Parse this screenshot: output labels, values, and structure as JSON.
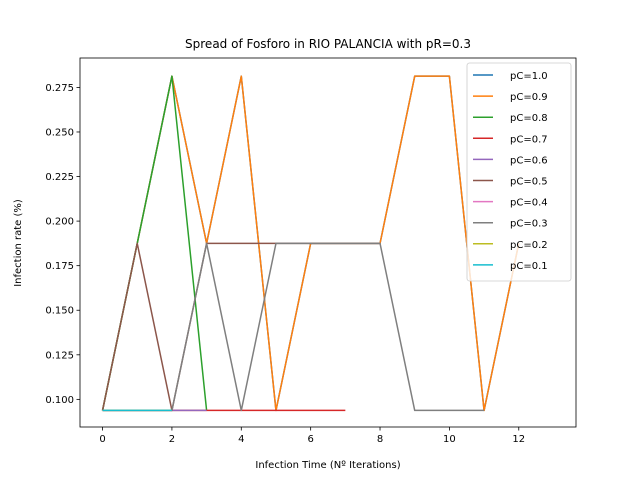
{
  "chart_data": {
    "type": "line",
    "title": "Spread of Fosforo in RIO PALANCIA with pR=0.3",
    "xlabel": "Infection Time (Nº Iterations)",
    "ylabel": "Infection rate (%)",
    "xlim": [
      -0.65,
      13.65
    ],
    "ylim": [
      0.0845,
      0.2915
    ],
    "xticks": [
      0,
      2,
      4,
      6,
      8,
      10,
      12
    ],
    "yticks": [
      0.1,
      0.125,
      0.15,
      0.175,
      0.2,
      0.225,
      0.25,
      0.275
    ],
    "ytick_labels": [
      "0.100",
      "0.125",
      "0.150",
      "0.175",
      "0.200",
      "0.225",
      "0.250",
      "0.275"
    ],
    "grid": false,
    "legend_position": "top-right",
    "series": [
      {
        "name": "pC=1.0",
        "color": "#1f77b4",
        "x": [
          0,
          1,
          2,
          3,
          4,
          5,
          6,
          7,
          8,
          9,
          10,
          11,
          12
        ],
        "y": [
          0.0938,
          0.1875,
          0.2813,
          0.1875,
          0.2813,
          0.0938,
          0.1875,
          0.1875,
          0.1875,
          0.2813,
          0.2813,
          0.0938,
          0.1875
        ]
      },
      {
        "name": "pC=0.9",
        "color": "#ff7f0e",
        "x": [
          0,
          1,
          2,
          3,
          4,
          5,
          6,
          7,
          8,
          9,
          10,
          11,
          12
        ],
        "y": [
          0.0938,
          0.1875,
          0.2813,
          0.1875,
          0.2813,
          0.0938,
          0.1875,
          0.1875,
          0.1875,
          0.2813,
          0.2813,
          0.0938,
          0.1875
        ]
      },
      {
        "name": "pC=0.8",
        "color": "#2ca02c",
        "x": [
          0,
          1,
          2,
          3
        ],
        "y": [
          0.0938,
          0.1875,
          0.2813,
          0.0938
        ]
      },
      {
        "name": "pC=0.7",
        "color": "#d62728",
        "x": [
          0,
          1,
          2,
          3,
          4,
          5,
          6,
          7
        ],
        "y": [
          0.0938,
          0.0938,
          0.0938,
          0.0938,
          0.0938,
          0.0938,
          0.0938,
          0.0938
        ]
      },
      {
        "name": "pC=0.6",
        "color": "#9467bd",
        "x": [
          0,
          1,
          2,
          3
        ],
        "y": [
          0.0938,
          0.0938,
          0.0938,
          0.0938
        ]
      },
      {
        "name": "pC=0.5",
        "color": "#8c564b",
        "x": [
          0,
          1,
          2,
          3,
          4,
          5,
          6,
          7,
          8
        ],
        "y": [
          0.0938,
          0.1875,
          0.0938,
          0.1875,
          0.1875,
          0.1875,
          0.1875,
          0.1875,
          0.1875
        ]
      },
      {
        "name": "pC=0.4",
        "color": "#e377c2",
        "x": [
          0,
          1,
          2
        ],
        "y": [
          0.0938,
          0.0938,
          0.0938
        ]
      },
      {
        "name": "pC=0.3",
        "color": "#7f7f7f",
        "x": [
          0,
          1,
          2,
          3,
          4,
          5,
          6,
          7,
          8,
          9,
          10,
          11
        ],
        "y": [
          0.0938,
          0.0938,
          0.0938,
          0.1875,
          0.0938,
          0.1875,
          0.1875,
          0.1875,
          0.1875,
          0.0938,
          0.0938,
          0.0938
        ]
      },
      {
        "name": "pC=0.2",
        "color": "#bcbd22",
        "x": [
          0,
          1,
          2
        ],
        "y": [
          0.0938,
          0.0938,
          0.0938
        ]
      },
      {
        "name": "pC=0.1",
        "color": "#17becf",
        "x": [
          0,
          1,
          2
        ],
        "y": [
          0.0938,
          0.0938,
          0.0938
        ]
      }
    ]
  }
}
